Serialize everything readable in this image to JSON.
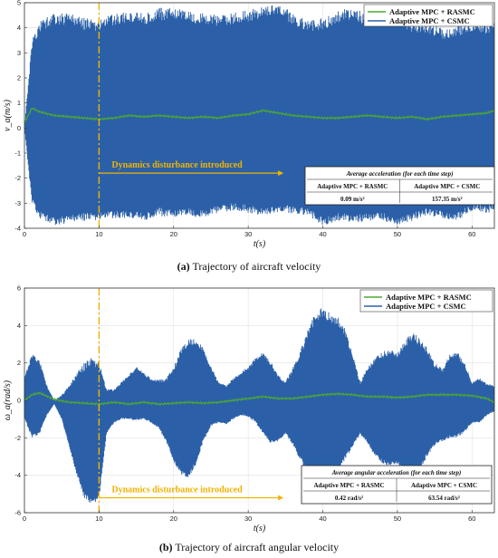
{
  "chart_data": [
    {
      "type": "line",
      "id": "a",
      "xlabel": "t(s)",
      "ylabel": "v_a(m/s)",
      "xlim": [
        0,
        63
      ],
      "ylim": [
        -4,
        5
      ],
      "xticks": [
        0,
        10,
        20,
        30,
        40,
        50,
        60
      ],
      "yticks": [
        -4,
        -3,
        -2,
        -1,
        0,
        1,
        2,
        3,
        4,
        5
      ],
      "grid": true,
      "legend_position": "top-right",
      "series": [
        {
          "name": "Adaptive MPC + RASMC",
          "color": "#4DA832",
          "x": [
            0,
            0.5,
            1,
            2,
            4,
            6,
            8,
            10,
            12,
            14,
            16,
            18,
            20,
            22,
            24,
            26,
            28,
            30,
            32,
            34,
            36,
            38,
            40,
            42,
            44,
            46,
            48,
            50,
            52,
            54,
            56,
            58,
            60,
            62,
            63
          ],
          "y": [
            0.2,
            0.5,
            0.8,
            0.65,
            0.5,
            0.45,
            0.4,
            0.35,
            0.4,
            0.5,
            0.45,
            0.5,
            0.45,
            0.4,
            0.45,
            0.4,
            0.5,
            0.55,
            0.7,
            0.6,
            0.5,
            0.45,
            0.4,
            0.4,
            0.45,
            0.5,
            0.45,
            0.4,
            0.45,
            0.35,
            0.45,
            0.5,
            0.55,
            0.6,
            0.7
          ]
        },
        {
          "name": "Adaptive MPC + CSMC",
          "color": "#2B60A8",
          "band": true,
          "x": [
            0,
            1,
            2,
            4,
            6,
            8,
            10,
            12,
            14,
            16,
            18,
            20,
            22,
            24,
            26,
            28,
            30,
            32,
            34,
            36,
            38,
            40,
            42,
            44,
            46,
            48,
            50,
            52,
            54,
            56,
            58,
            60,
            62,
            63
          ],
          "upper": [
            0,
            3.5,
            4.3,
            4.6,
            4.6,
            4.4,
            4.3,
            4.6,
            4.7,
            4.6,
            4.8,
            4.8,
            4.7,
            4.6,
            4.5,
            4.6,
            4.7,
            4.9,
            5.0,
            4.6,
            4.3,
            4.4,
            4.7,
            4.8,
            4.6,
            4.7,
            4.6,
            4.3,
            4.2,
            4.0,
            4.1,
            4.3,
            4.2,
            4.4
          ],
          "lower": [
            0,
            -3.0,
            -3.6,
            -3.9,
            -3.8,
            -3.7,
            -3.7,
            -3.6,
            -3.6,
            -3.7,
            -3.5,
            -3.6,
            -3.5,
            -3.6,
            -3.4,
            -3.3,
            -3.4,
            -3.5,
            -3.4,
            -3.4,
            -3.5,
            -3.9,
            -3.7,
            -3.8,
            -3.7,
            -3.7,
            -3.9,
            -3.7,
            -3.5,
            -3.6,
            -3.7,
            -3.3,
            -3.4,
            -3.3
          ]
        }
      ],
      "annotation": {
        "text": "Dynamics disturbance introduced",
        "x": 10,
        "arrow_to": 34,
        "y": -1.8,
        "color": "#F2B200"
      },
      "table": {
        "title": "Average acceleration (for each time step)",
        "headers": [
          "Adaptive MPC + RASMC",
          "Adaptive MPC + CSMC"
        ],
        "values": [
          "0.09 m/s²",
          "157.35 m/s²"
        ]
      }
    },
    {
      "type": "line",
      "id": "b",
      "xlabel": "t(s)",
      "ylabel": "ω_a(rad/s)",
      "xlim": [
        0,
        63
      ],
      "ylim": [
        -6,
        6
      ],
      "xticks": [
        0,
        10,
        20,
        30,
        40,
        50,
        60
      ],
      "yticks": [
        -6,
        -4,
        -2,
        0,
        2,
        4,
        6
      ],
      "grid": true,
      "legend_position": "top-right",
      "series": [
        {
          "name": "Adaptive MPC + RASMC",
          "color": "#4DA832",
          "x": [
            0,
            1,
            2,
            4,
            6,
            8,
            10,
            12,
            14,
            16,
            18,
            20,
            22,
            24,
            26,
            28,
            30,
            32,
            34,
            36,
            38,
            40,
            42,
            44,
            46,
            48,
            50,
            52,
            54,
            56,
            58,
            60,
            62,
            63
          ],
          "y": [
            0.0,
            0.3,
            0.4,
            0.05,
            -0.1,
            -0.15,
            -0.2,
            -0.1,
            -0.2,
            -0.1,
            -0.2,
            -0.15,
            -0.1,
            -0.15,
            -0.1,
            0.0,
            0.1,
            0.2,
            0.1,
            0.1,
            0.2,
            0.3,
            0.35,
            0.3,
            0.2,
            0.2,
            0.15,
            0.2,
            0.3,
            0.3,
            0.3,
            0.25,
            0.1,
            -0.1
          ]
        },
        {
          "name": "Adaptive MPC + CSMC",
          "color": "#2B60A8",
          "band": true,
          "x": [
            0,
            1,
            2,
            3,
            4,
            5,
            6,
            7,
            8,
            9,
            10,
            11,
            12,
            13,
            14,
            15,
            16,
            17,
            18,
            19,
            20,
            21,
            22,
            23,
            24,
            25,
            26,
            27,
            28,
            29,
            30,
            31,
            32,
            33,
            34,
            35,
            36,
            37,
            38,
            39,
            40,
            41,
            42,
            43,
            44,
            45,
            46,
            47,
            48,
            49,
            50,
            51,
            52,
            53,
            54,
            55,
            56,
            57,
            58,
            59,
            60,
            61,
            62,
            63
          ],
          "upper": [
            1.2,
            2.5,
            2.2,
            0.8,
            0.0,
            0.3,
            0.8,
            1.5,
            2.0,
            2.3,
            2.1,
            0.6,
            0.6,
            1.0,
            1.4,
            1.8,
            1.5,
            1.2,
            1.1,
            1.2,
            1.8,
            2.8,
            3.3,
            3.4,
            2.8,
            1.8,
            1.0,
            0.8,
            1.2,
            1.5,
            1.8,
            2.3,
            2.6,
            2.1,
            1.4,
            1.0,
            1.8,
            2.7,
            3.8,
            4.7,
            5.0,
            4.7,
            4.5,
            3.8,
            2.5,
            1.0,
            1.8,
            2.3,
            2.6,
            2.8,
            2.6,
            3.2,
            3.7,
            3.3,
            2.8,
            2.0,
            1.7,
            2.5,
            2.6,
            2.0,
            1.0,
            1.2,
            0.9,
            0.8
          ],
          "lower": [
            -1.0,
            -2.0,
            -1.8,
            -0.8,
            -0.2,
            -1.0,
            -2.5,
            -4.0,
            -5.2,
            -5.6,
            -5.3,
            -1.8,
            -1.2,
            -1.0,
            -1.0,
            -1.1,
            -1.0,
            -1.2,
            -1.5,
            -2.2,
            -3.3,
            -4.0,
            -4.2,
            -3.4,
            -2.2,
            -1.4,
            -1.2,
            -1.3,
            -1.0,
            -0.8,
            -0.9,
            -1.2,
            -1.8,
            -2.3,
            -2.2,
            -1.8,
            -2.4,
            -3.2,
            -3.9,
            -4.3,
            -4.4,
            -4.2,
            -3.8,
            -3.2,
            -2.5,
            -1.8,
            -2.3,
            -3.0,
            -3.4,
            -3.5,
            -3.4,
            -3.9,
            -4.6,
            -3.8,
            -3.0,
            -2.4,
            -2.2,
            -2.0,
            -2.0,
            -1.7,
            -1.2,
            -1.2,
            -0.8,
            -0.6
          ]
        }
      ],
      "annotation": {
        "text": "Dynamics disturbance introduced",
        "x": 10,
        "arrow_to": 34,
        "y": -5.2,
        "color": "#F2B200"
      },
      "table": {
        "title": "Average angular acceleration (for each time step)",
        "headers": [
          "Adaptive MPC + RASMC",
          "Adaptive MPC + CSMC"
        ],
        "values": [
          "0.42 rad/s²",
          "63.54 rad/s²"
        ]
      }
    }
  ],
  "captions": {
    "a_label": "(a)",
    "a_text": "Trajectory of aircraft velocity",
    "b_label": "(b)",
    "b_text": "Trajectory of aircraft angular velocity"
  }
}
